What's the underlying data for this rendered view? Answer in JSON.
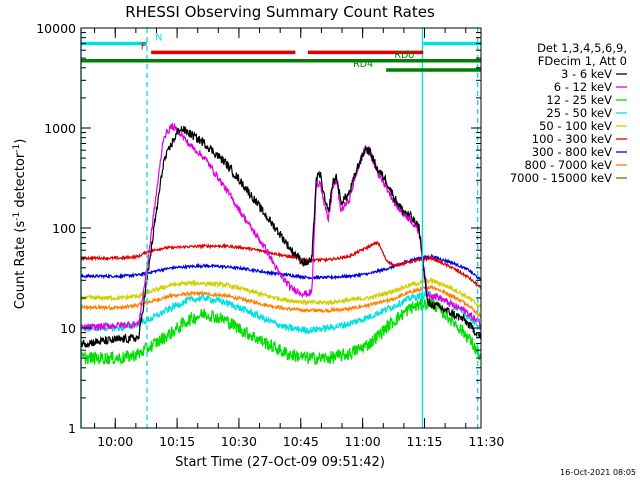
{
  "chart_data": {
    "type": "line",
    "title": "RHESSI Observing Summary Count Rates",
    "xlabel": "Start Time (27-Oct-09 09:51:42)",
    "ylabel_main": "Count Rate (s",
    "ylabel_sup1": "-1",
    "ylabel_mid": " detector",
    "ylabel_sup2": "-1",
    "ylabel_end": ")",
    "x_unit": "minutes since 09:51:42",
    "xlim": [
      0,
      97
    ],
    "ylim": [
      1,
      10000
    ],
    "y_scale": "log",
    "x_ticks": [
      {
        "label": "10:00",
        "value": 8.3
      },
      {
        "label": "10:15",
        "value": 23.3
      },
      {
        "label": "10:30",
        "value": 38.3
      },
      {
        "label": "10:45",
        "value": 53.3
      },
      {
        "label": "11:00",
        "value": 68.3
      },
      {
        "label": "11:15",
        "value": 83.3
      },
      {
        "label": "11:30",
        "value": 98.3
      }
    ],
    "y_ticks": [
      {
        "label": "1",
        "value": 1
      },
      {
        "label": "10",
        "value": 10
      },
      {
        "label": "100",
        "value": 100
      },
      {
        "label": "1000",
        "value": 1000
      },
      {
        "label": "10000",
        "value": 10000
      }
    ],
    "legend": {
      "position": "right",
      "header": [
        "Det 1,3,4,5,6,9,",
        "FDecim 1, Att 0"
      ]
    },
    "series": [
      {
        "name": "3 - 6 keV",
        "color": "#000000",
        "noise": 0.1,
        "x": [
          0,
          14,
          16,
          18,
          20,
          22,
          24,
          26,
          30,
          35,
          40,
          45,
          48,
          51,
          54,
          55,
          56,
          57,
          58,
          59,
          60,
          61,
          62,
          63,
          65,
          67,
          69,
          70,
          72,
          74,
          76,
          78,
          80,
          82,
          84,
          87,
          90,
          93,
          97
        ],
        "y": [
          7,
          8,
          30,
          120,
          450,
          700,
          1000,
          900,
          700,
          450,
          250,
          130,
          90,
          60,
          45,
          45,
          48,
          300,
          350,
          200,
          140,
          280,
          330,
          180,
          220,
          400,
          620,
          580,
          380,
          300,
          200,
          150,
          130,
          100,
          18,
          16,
          14,
          12,
          8
        ]
      },
      {
        "name": "6 - 12 keV",
        "color": "#e000e0",
        "noise": 0.08,
        "x": [
          0,
          14,
          16,
          18,
          20,
          22,
          24,
          26,
          30,
          35,
          40,
          45,
          48,
          51,
          54,
          55,
          56,
          57,
          58,
          59,
          60,
          61,
          62,
          63,
          65,
          67,
          69,
          70,
          72,
          74,
          76,
          78,
          80,
          82,
          84,
          87,
          90,
          93,
          97
        ],
        "y": [
          10,
          11,
          40,
          180,
          800,
          1050,
          900,
          700,
          500,
          250,
          120,
          60,
          35,
          25,
          22,
          22,
          23,
          250,
          300,
          170,
          120,
          250,
          300,
          150,
          190,
          380,
          650,
          600,
          350,
          260,
          180,
          140,
          120,
          90,
          22,
          20,
          17,
          15,
          11
        ]
      },
      {
        "name": "12 - 25 keV",
        "color": "#00e000",
        "noise": 0.15,
        "x": [
          0,
          10,
          14,
          18,
          22,
          26,
          30,
          35,
          40,
          45,
          50,
          55,
          60,
          65,
          70,
          75,
          80,
          85,
          90,
          94,
          97
        ],
        "y": [
          5,
          5,
          5.5,
          7,
          9,
          12,
          14,
          12,
          9,
          7,
          5.5,
          5,
          5,
          5.5,
          7,
          11,
          16,
          18,
          12,
          8,
          5
        ]
      },
      {
        "name": "25 - 50 keV",
        "color": "#00e0e0",
        "noise": 0.08,
        "x": [
          0,
          10,
          14,
          18,
          22,
          26,
          30,
          35,
          40,
          45,
          50,
          55,
          60,
          65,
          70,
          75,
          80,
          85,
          90,
          94,
          97
        ],
        "y": [
          10,
          10,
          11,
          13,
          16,
          19,
          20,
          18,
          15,
          12,
          10,
          9.5,
          10,
          11,
          13,
          16,
          20,
          22,
          17,
          13,
          10
        ]
      },
      {
        "name": "50 - 100 keV",
        "color": "#d0d000",
        "noise": 0.05,
        "x": [
          0,
          10,
          14,
          18,
          22,
          26,
          30,
          35,
          40,
          45,
          50,
          55,
          60,
          65,
          70,
          75,
          80,
          85,
          90,
          94,
          97
        ],
        "y": [
          20,
          20,
          21,
          24,
          27,
          28,
          28,
          27,
          24,
          21,
          19,
          18,
          18,
          19,
          20,
          23,
          27,
          30,
          25,
          20,
          16
        ]
      },
      {
        "name": "100 - 300 keV",
        "color": "#e00000",
        "noise": 0.03,
        "x": [
          0,
          10,
          14,
          16,
          20,
          26,
          30,
          35,
          40,
          45,
          50,
          55,
          60,
          65,
          68,
          72,
          74,
          76,
          80,
          85,
          90,
          94,
          97
        ],
        "y": [
          50,
          50,
          52,
          58,
          63,
          65,
          66,
          66,
          63,
          58,
          52,
          48,
          48,
          52,
          60,
          72,
          48,
          42,
          46,
          50,
          40,
          32,
          25
        ]
      },
      {
        "name": "300 - 800 keV",
        "color": "#0000e0",
        "noise": 0.03,
        "x": [
          0,
          10,
          14,
          18,
          22,
          26,
          30,
          35,
          40,
          45,
          50,
          55,
          60,
          65,
          70,
          75,
          80,
          85,
          90,
          94,
          97
        ],
        "y": [
          33,
          33,
          34,
          37,
          40,
          41,
          42,
          41,
          39,
          36,
          34,
          32,
          32,
          33,
          35,
          40,
          48,
          52,
          45,
          38,
          30
        ]
      },
      {
        "name": "800 - 7000 keV",
        "color": "#ff8000",
        "noise": 0.04,
        "x": [
          0,
          10,
          14,
          18,
          22,
          26,
          30,
          35,
          40,
          45,
          50,
          55,
          60,
          65,
          70,
          75,
          80,
          85,
          90,
          94,
          97
        ],
        "y": [
          16,
          16,
          17,
          19,
          21,
          22,
          22,
          21,
          19,
          17,
          15.5,
          15,
          15,
          15.5,
          17,
          19,
          23,
          26,
          21,
          17,
          13
        ]
      },
      {
        "name": "7000 - 15000 keV",
        "color": "#a06000",
        "noise": 0,
        "x": [],
        "y": []
      }
    ],
    "annotations": {
      "intervals": [
        {
          "label": "N",
          "color": "#00e0e0",
          "value": 7000,
          "segments": [
            [
              0,
              16
            ],
            [
              83,
              97
            ]
          ],
          "label_at": 18
        },
        {
          "label": "F",
          "color": "#e00000",
          "value": 5700,
          "segments": [
            [
              17,
              52
            ],
            [
              55,
              83
            ]
          ],
          "label_at": 14.5
        },
        {
          "label": "RD0",
          "color": "#008000",
          "value": 4700,
          "segments": [
            [
              0,
              97
            ]
          ],
          "label_at": 76
        },
        {
          "label": "RD4",
          "color": "#008000",
          "value": 3800,
          "segments": [
            [
              74,
              97
            ]
          ],
          "label_at": 66
        }
      ],
      "vlines": [
        {
          "value": 0,
          "color": "#00e0e0",
          "style": "solid"
        },
        {
          "value": 16,
          "color": "#00e0e0",
          "style": "dashed"
        },
        {
          "value": 82.8,
          "color": "#00e0e0",
          "style": "solid"
        },
        {
          "value": 96.2,
          "color": "#00e0e0",
          "style": "dashed"
        }
      ]
    }
  },
  "footer": {
    "datestamp": "16-Oct-2021 08:05"
  }
}
